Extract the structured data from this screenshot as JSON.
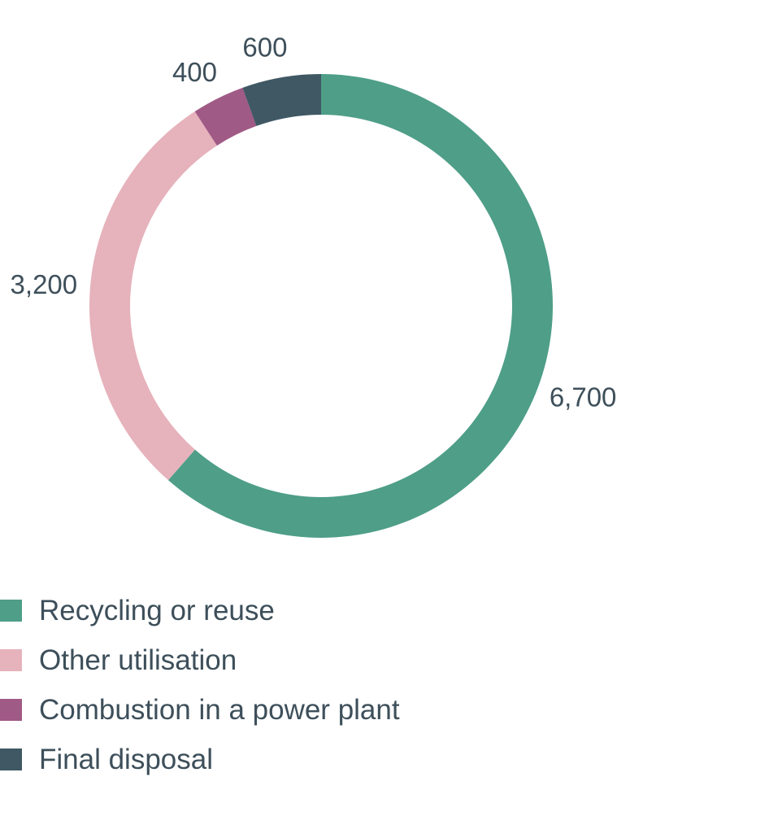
{
  "chart_data": {
    "type": "pie",
    "donut": true,
    "title": "",
    "categories": [
      "Recycling or reuse",
      "Other utilisation",
      "Combustion in a power plant",
      "Final disposal"
    ],
    "values": [
      6700,
      3200,
      400,
      600
    ],
    "value_labels": [
      "6,700",
      "3,200",
      "400",
      "600"
    ],
    "colors": [
      "#4e9e88",
      "#e6b2bb",
      "#a05a86",
      "#3f5864"
    ],
    "legend_position": "bottom-left",
    "direction": "clockwise from top"
  },
  "text_color": "#3d4f5a"
}
